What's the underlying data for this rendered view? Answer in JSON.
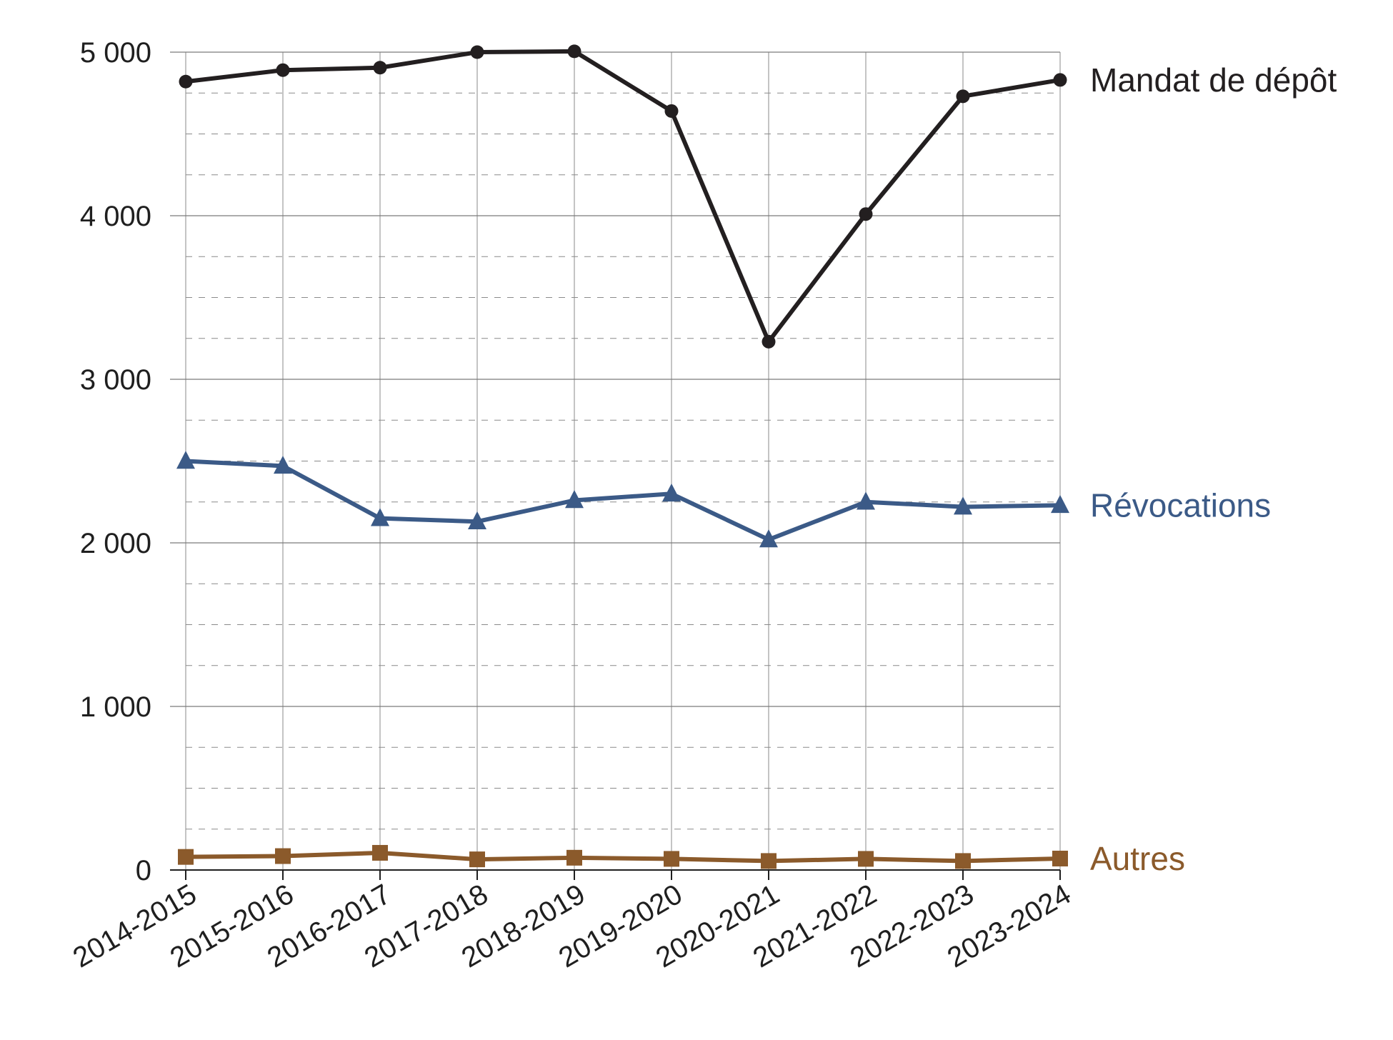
{
  "chart_data": {
    "type": "line",
    "categories": [
      "2014-2015",
      "2015-2016",
      "2016-2017",
      "2017-2018",
      "2018-2019",
      "2019-2020",
      "2020-2021",
      "2021-2022",
      "2022-2023",
      "2023-2024"
    ],
    "ylim": [
      0,
      5000
    ],
    "yticks": [
      0,
      1000,
      2000,
      3000,
      4000,
      5000
    ],
    "ytick_labels": [
      "0",
      "1 000",
      "2 000",
      "3 000",
      "4 000",
      "5 000"
    ],
    "minor_step": 250,
    "grid": true,
    "legend": "direct labels at right end of each line",
    "series": [
      {
        "name": "Mandat de dépôt",
        "color": "#231f20",
        "marker": "circle",
        "values": [
          4820,
          4890,
          4905,
          5000,
          5005,
          4640,
          3230,
          4010,
          4730,
          4830
        ]
      },
      {
        "name": "Révocations",
        "color": "#3b5a87",
        "marker": "triangle",
        "values": [
          2500,
          2470,
          2150,
          2130,
          2260,
          2300,
          2020,
          2250,
          2220,
          2230
        ]
      },
      {
        "name": "Autres",
        "color": "#8b5a2b",
        "marker": "square",
        "values": [
          80,
          85,
          105,
          65,
          75,
          68,
          55,
          68,
          55,
          70
        ]
      }
    ]
  }
}
